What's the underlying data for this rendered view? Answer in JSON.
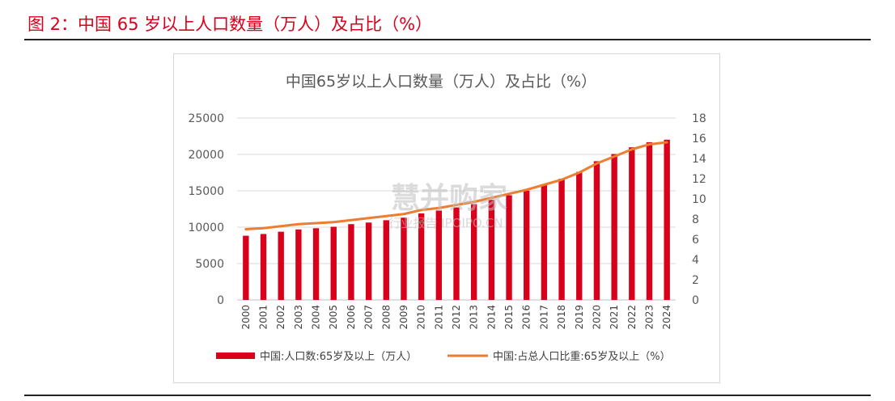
{
  "figure_caption": "图 2：中国 65 岁以上人口数量（万人）及占比（%）",
  "watermark": {
    "main": "慧并购家",
    "sub": "行业报告 IPOIPO.CN"
  },
  "colors": {
    "bar": "#d9001b",
    "line": "#ed7d31",
    "caption": "#d9001b"
  },
  "chart_data": {
    "type": "bar",
    "title": "中国65岁以上人口数量（万人）及占比（%）",
    "categories": [
      "2000",
      "2001",
      "2002",
      "2003",
      "2004",
      "2005",
      "2006",
      "2007",
      "2008",
      "2009",
      "2010",
      "2011",
      "2012",
      "2013",
      "2014",
      "2015",
      "2016",
      "2017",
      "2018",
      "2019",
      "2020",
      "2021",
      "2022",
      "2023",
      "2024"
    ],
    "series": [
      {
        "name": "中国:人口数:65岁及以上（万人）",
        "type": "bar",
        "axis": "left",
        "values": [
          8821,
          9062,
          9377,
          9692,
          9857,
          10055,
          10419,
          10636,
          10956,
          11307,
          11894,
          12288,
          12714,
          13161,
          13755,
          14386,
          15003,
          15831,
          16658,
          17603,
          19064,
          20056,
          20978,
          21676,
          22023
        ]
      },
      {
        "name": "中国:占总人口比重:65岁及以上（%）",
        "type": "line",
        "axis": "right",
        "values": [
          7.0,
          7.1,
          7.3,
          7.5,
          7.6,
          7.7,
          7.9,
          8.1,
          8.3,
          8.5,
          8.9,
          9.1,
          9.4,
          9.7,
          10.1,
          10.5,
          10.9,
          11.4,
          11.9,
          12.6,
          13.5,
          14.2,
          14.9,
          15.4,
          15.6
        ]
      }
    ],
    "y_left": {
      "ylim": [
        0,
        25000
      ],
      "ticks": [
        "0",
        "5000",
        "10000",
        "15000",
        "20000",
        "25000"
      ]
    },
    "y_right": {
      "ylim": [
        0,
        18
      ],
      "ticks": [
        "0",
        "2",
        "4",
        "6",
        "8",
        "10",
        "12",
        "14",
        "16",
        "18"
      ]
    },
    "grid": true,
    "legend_position": "bottom"
  }
}
